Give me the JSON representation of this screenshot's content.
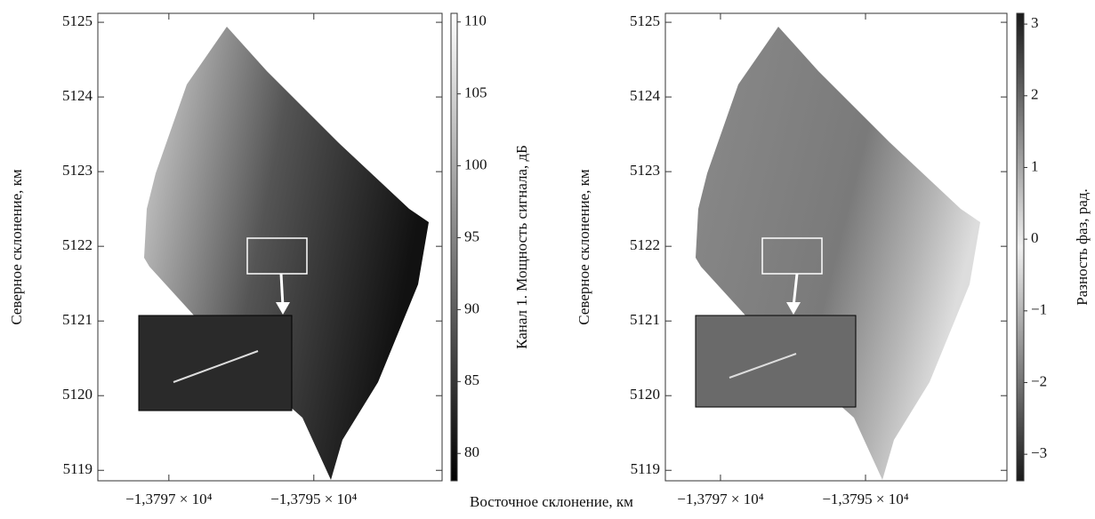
{
  "chart_data": [
    {
      "type": "image",
      "ylabel": "Северное склонение, км",
      "xlim": [
        -13797.98,
        -13793.23
      ],
      "xticks": [
        {
          "value": -13797,
          "label": "−1,3797 × 10⁴"
        },
        {
          "value": -13795,
          "label": "−1,3795 × 10⁴"
        }
      ],
      "ylim": [
        5118.86,
        5125.12
      ],
      "yticks": [
        5119,
        5120,
        5121,
        5122,
        5123,
        5124,
        5125
      ],
      "colorbar": {
        "label": "Канал 1. Мощность сигнала, дБ",
        "lim": [
          78.1,
          110.6
        ],
        "ticks": [
          80,
          85,
          90,
          95,
          100,
          105,
          110
        ],
        "colors": [
          "#000000",
          "#ffffff"
        ]
      }
    },
    {
      "type": "image",
      "ylabel": "Северное склонение, км",
      "xlim": [
        -13797.76,
        -13793.05
      ],
      "xticks": [
        {
          "value": -13797,
          "label": "−1,3797 × 10⁴"
        },
        {
          "value": -13795,
          "label": "−1,3795 × 10⁴"
        }
      ],
      "ylim": [
        5118.86,
        5125.12
      ],
      "yticks": [
        5119,
        5120,
        5121,
        5122,
        5123,
        5124,
        5125
      ],
      "colorbar": {
        "label": "Разность фаз, рад.",
        "lim": [
          -3.37,
          3.15
        ],
        "ticks": [
          {
            "value": -3,
            "label": "−3"
          },
          {
            "value": -2,
            "label": "−2"
          },
          {
            "value": -1,
            "label": "−1"
          },
          0,
          1,
          2,
          3
        ],
        "colors": [
          "#1a1a1a",
          "#f0f0f0",
          "#1a1a1a"
        ]
      }
    }
  ],
  "xlabel": "Восточное склонение, км"
}
